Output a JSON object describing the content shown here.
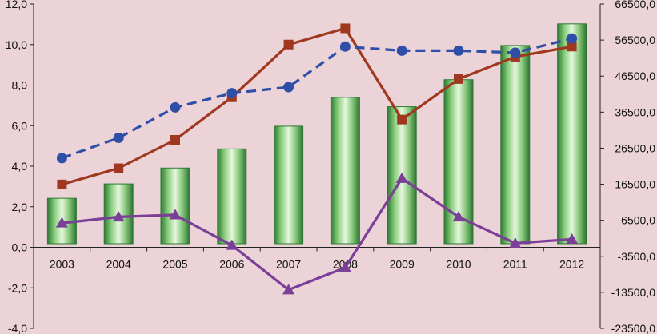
{
  "chart_data": {
    "type": "bar+line",
    "categories": [
      "2003",
      "2004",
      "2005",
      "2006",
      "2007",
      "2008",
      "2009",
      "2010",
      "2011",
      "2012"
    ],
    "left_axis": {
      "ylim": [
        -4.0,
        12.0
      ],
      "ticks": [
        -4.0,
        -2.0,
        0.0,
        2.0,
        4.0,
        6.0,
        8.0,
        10.0,
        12.0
      ],
      "tick_labels": [
        "-4,0",
        "-2,0",
        "0,0",
        "2,0",
        "4,0",
        "6,0",
        "8,0",
        "10,0",
        "12,0"
      ]
    },
    "right_axis": {
      "ylim": [
        -23500.0,
        66500.0
      ],
      "ticks": [
        -23500,
        -13500,
        -3500,
        6500,
        16500,
        26500,
        36500,
        46500,
        56500,
        66500
      ],
      "tick_labels": [
        "-23500,0",
        "-13500,0",
        "-3500,0",
        "6500,0",
        "16500,0",
        "26500,0",
        "36500,0",
        "46500,0",
        "56500,0",
        "66500,0"
      ]
    },
    "series": [
      {
        "kind": "bar",
        "axis": "right",
        "color": "#3f9a4a",
        "values": [
          12600,
          16600,
          21000,
          26300,
          32600,
          40600,
          38000,
          45500,
          55000,
          61000
        ]
      },
      {
        "kind": "line",
        "axis": "left",
        "color": "#a0381f",
        "marker": "square",
        "dash": "solid",
        "values": [
          3.1,
          3.9,
          5.3,
          7.4,
          10.0,
          10.8,
          6.3,
          8.3,
          9.4,
          9.9
        ]
      },
      {
        "kind": "line",
        "axis": "left",
        "color": "#2f4ea8",
        "marker": "circle",
        "dash": "dashed",
        "values": [
          4.4,
          5.4,
          6.9,
          7.6,
          7.9,
          9.9,
          9.7,
          9.7,
          9.6,
          10.3
        ]
      },
      {
        "kind": "line",
        "axis": "left",
        "color": "#7b3f98",
        "marker": "triangle",
        "dash": "solid",
        "values": [
          1.2,
          1.5,
          1.6,
          0.1,
          -2.1,
          -1.0,
          3.4,
          1.5,
          0.2,
          0.4
        ]
      }
    ]
  }
}
